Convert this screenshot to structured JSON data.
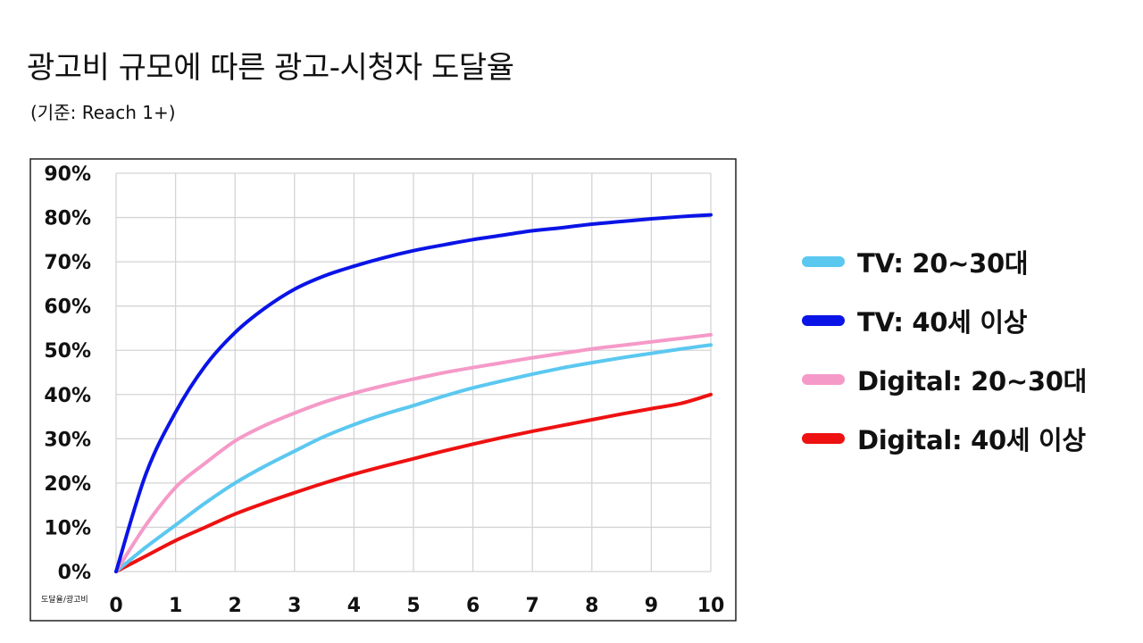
{
  "title": "광고비 규모에 따른 광고-시청자 도달율",
  "subtitle": "(기준: Reach 1+)",
  "corner_label": "도달율/광고비",
  "colors": {
    "tv_2030": "#5bc8f0",
    "tv_40": "#0a14e6",
    "digital_2030": "#f59ac8",
    "digital_40": "#ee1111"
  },
  "chart_data": {
    "type": "line",
    "title": "광고비 규모에 따른 광고-시청자 도달율",
    "subtitle": "(기준: Reach 1+)",
    "xlabel": "광고비",
    "ylabel": "도달율",
    "xlim": [
      0,
      10
    ],
    "ylim": [
      0,
      90
    ],
    "x": [
      0,
      0.5,
      1,
      1.5,
      2,
      2.5,
      3,
      3.5,
      4,
      4.5,
      5,
      5.5,
      6,
      6.5,
      7,
      7.5,
      8,
      8.5,
      9,
      9.5,
      10
    ],
    "x_ticks": [
      "0",
      "1",
      "2",
      "3",
      "4",
      "5",
      "6",
      "7",
      "8",
      "9",
      "10"
    ],
    "y_ticks": [
      "0%",
      "10%",
      "20%",
      "30%",
      "40%",
      "50%",
      "60%",
      "70%",
      "80%",
      "90%"
    ],
    "grid": true,
    "legend_position": "right",
    "series": [
      {
        "name": "TV: 20~30대",
        "color": "#5bc8f0",
        "values": [
          0,
          5.5,
          10.5,
          15.5,
          20,
          23.8,
          27.2,
          30.5,
          33.2,
          35.5,
          37.5,
          39.6,
          41.5,
          43.1,
          44.6,
          46,
          47.2,
          48.3,
          49.3,
          50.3,
          51.2
        ]
      },
      {
        "name": "TV: 40세 이상",
        "color": "#0a14e6",
        "values": [
          0,
          22,
          36,
          46.5,
          54,
          59.5,
          63.8,
          66.8,
          69,
          70.9,
          72.5,
          73.8,
          75,
          76,
          77,
          77.7,
          78.5,
          79.1,
          79.7,
          80.2,
          80.6
        ]
      },
      {
        "name": "Digital: 20~30대",
        "color": "#f59ac8",
        "values": [
          0,
          10.5,
          19,
          24.5,
          29.5,
          33,
          35.8,
          38.3,
          40.3,
          42,
          43.5,
          44.9,
          46.1,
          47.2,
          48.3,
          49.3,
          50.3,
          51.1,
          51.9,
          52.7,
          53.5
        ]
      },
      {
        "name": "Digital: 40세 이상",
        "color": "#ee1111",
        "values": [
          0,
          3.5,
          7,
          10,
          13,
          15.5,
          17.8,
          20,
          22,
          23.8,
          25.5,
          27.2,
          28.8,
          30.3,
          31.7,
          33,
          34.3,
          35.6,
          36.8,
          38,
          40
        ]
      }
    ]
  }
}
